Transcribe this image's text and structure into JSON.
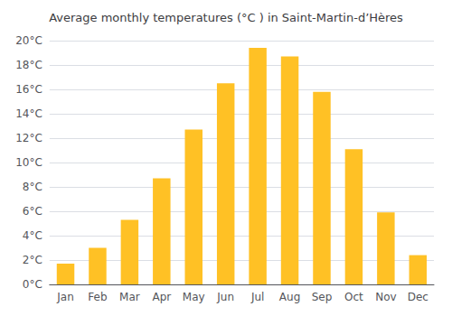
{
  "chart_data": {
    "type": "bar",
    "title": "Average monthly temperatures (°C ) in Saint-Martin-d’Hères",
    "categories": [
      "Jan",
      "Feb",
      "Mar",
      "Apr",
      "May",
      "Jun",
      "Jul",
      "Aug",
      "Sep",
      "Oct",
      "Nov",
      "Dec"
    ],
    "values": [
      1.7,
      3.0,
      5.3,
      8.7,
      12.7,
      16.5,
      19.4,
      18.7,
      15.8,
      11.1,
      5.9,
      2.4
    ],
    "color": "#FFC125",
    "ylim": [
      0,
      20
    ],
    "yticks": [
      {
        "value": 0,
        "label": "0°C"
      },
      {
        "value": 2,
        "label": "2°C"
      },
      {
        "value": 4,
        "label": "4°C"
      },
      {
        "value": 6,
        "label": "6°C"
      },
      {
        "value": 8,
        "label": "8°C"
      },
      {
        "value": 10,
        "label": "10°C"
      },
      {
        "value": 12,
        "label": "12°C"
      },
      {
        "value": 14,
        "label": "14°C"
      },
      {
        "value": 16,
        "label": "16°C"
      },
      {
        "value": 18,
        "label": "18°C"
      },
      {
        "value": 20,
        "label": "20°C"
      }
    ],
    "grid": true
  }
}
